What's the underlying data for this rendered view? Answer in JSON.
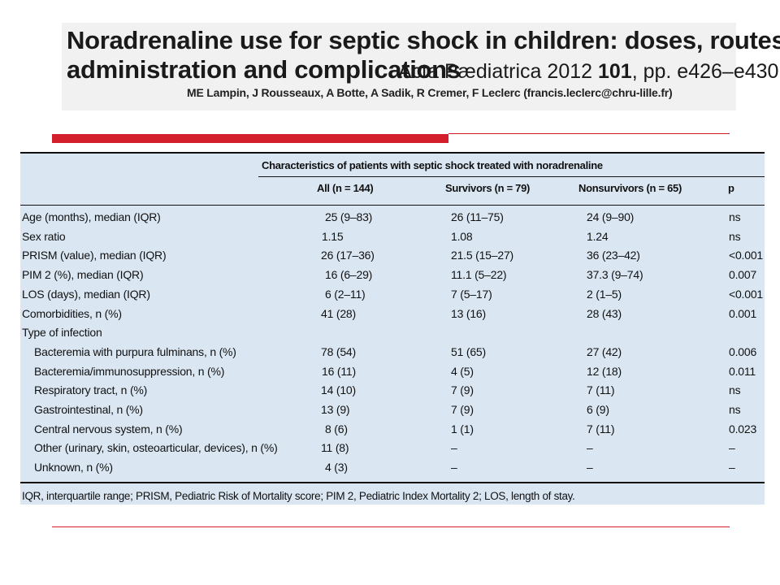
{
  "header": {
    "title_line1": "Noradrenaline use for septic shock in children: doses, routes of",
    "title_line2": "administration and complications",
    "citation_journal": "Acta Pædiatrica 2012 ",
    "citation_volume": "101",
    "citation_pages": ", pp. e426–e430",
    "authors": "ME Lampin, J Rousseaux, A Botte, A Sadik, R Cremer, F Leclerc (francis.leclerc@chru-lille.fr)"
  },
  "table": {
    "caption": "Characteristics of patients with septic shock treated with noradrenaline",
    "columns": [
      "All (n = 144)",
      "Survivors (n = 79)",
      "Nonsurvivors (n = 65)",
      "p"
    ],
    "rows": [
      {
        "label": "Age (months), median (IQR)",
        "indent": false,
        "all": "25 (9–83)",
        "survivors": "26 (11–75)",
        "nonsurvivors": "24 (9–90)",
        "p": "ns"
      },
      {
        "label": "Sex ratio",
        "indent": false,
        "all": "1.15",
        "survivors": "1.08",
        "nonsurvivors": "1.24",
        "p": "ns"
      },
      {
        "label": "PRISM (value), median (IQR)",
        "indent": false,
        "all": "26 (17–36)",
        "survivors": "21.5 (15–27)",
        "nonsurvivors": "36 (23–42)",
        "p": "<0.001"
      },
      {
        "label": "PIM 2 (%), median (IQR)",
        "indent": false,
        "all": "16 (6–29)",
        "survivors": "11.1 (5–22)",
        "nonsurvivors": "37.3 (9–74)",
        "p": "0.007"
      },
      {
        "label": "LOS (days), median (IQR)",
        "indent": false,
        "all": "6 (2–11)",
        "survivors": "7 (5–17)",
        "nonsurvivors": "2 (1–5)",
        "p": "<0.001"
      },
      {
        "label": "Comorbidities, n (%)",
        "indent": false,
        "all": "41 (28)",
        "survivors": "13 (16)",
        "nonsurvivors": "28 (43)",
        "p": "0.001"
      },
      {
        "label": "Type of infection",
        "indent": false,
        "all": "",
        "survivors": "",
        "nonsurvivors": "",
        "p": ""
      },
      {
        "label": "Bacteremia with purpura fulminans, n (%)",
        "indent": true,
        "all": "78 (54)",
        "survivors": "51 (65)",
        "nonsurvivors": "27 (42)",
        "p": "0.006"
      },
      {
        "label": "Bacteremia/immunosuppression, n (%)",
        "indent": true,
        "all": "16 (11)",
        "survivors": "4 (5)",
        "nonsurvivors": "12 (18)",
        "p": "0.011"
      },
      {
        "label": "Respiratory tract, n (%)",
        "indent": true,
        "all": "14 (10)",
        "survivors": "7 (9)",
        "nonsurvivors": "7 (11)",
        "p": "ns"
      },
      {
        "label": "Gastrointestinal, n (%)",
        "indent": true,
        "all": "13 (9)",
        "survivors": "7 (9)",
        "nonsurvivors": "6 (9)",
        "p": "ns"
      },
      {
        "label": "Central nervous system, n (%)",
        "indent": true,
        "all": "8 (6)",
        "survivors": "1 (1)",
        "nonsurvivors": "7 (11)",
        "p": "0.023"
      },
      {
        "label": "Other (urinary, skin, osteoarticular, devices), n (%)",
        "indent": true,
        "all": "11 (8)",
        "survivors": "–",
        "nonsurvivors": "–",
        "p": "–"
      },
      {
        "label": "Unknown, n (%)",
        "indent": true,
        "all": "4 (3)",
        "survivors": "–",
        "nonsurvivors": "–",
        "p": "–"
      }
    ],
    "footnote": "IQR, interquartile range; PRISM, Pediatric Risk of Mortality score; PIM 2, Pediatric Index Mortality 2; LOS, length of stay."
  },
  "colors": {
    "accent_red": "#d21f2b",
    "table_background": "#dae7f3",
    "header_band": "#f1f1f1"
  }
}
